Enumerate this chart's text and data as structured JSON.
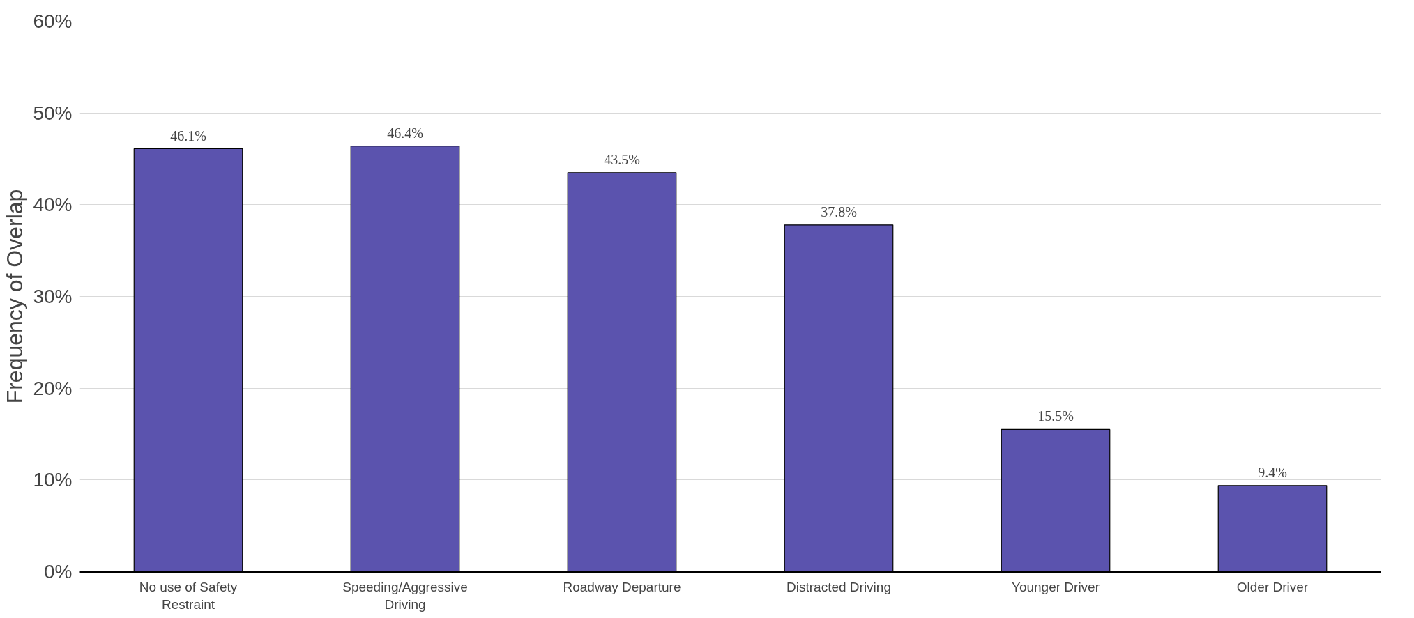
{
  "chart_data": {
    "type": "bar",
    "ylabel": "Frequency of Overlap",
    "categories": [
      "No use of Safety Restraint",
      "Speeding/Aggressive Driving",
      "Roadway Departure",
      "Distracted Driving",
      "Younger Driver",
      "Older Driver"
    ],
    "values": [
      46.1,
      46.4,
      43.5,
      37.8,
      15.5,
      9.4
    ],
    "value_labels": [
      "46.1%",
      "46.4%",
      "43.5%",
      "37.8%",
      "15.5%",
      "9.4%"
    ],
    "color": "#5b53ae",
    "ylim": [
      0,
      60
    ],
    "yticks": [
      {
        "value": 0,
        "label": "0%"
      },
      {
        "value": 10,
        "label": "10%"
      },
      {
        "value": 20,
        "label": "20%"
      },
      {
        "value": 30,
        "label": "30%"
      },
      {
        "value": 40,
        "label": "40%"
      },
      {
        "value": 50,
        "label": "50%"
      },
      {
        "value": 60,
        "label": "60%"
      }
    ],
    "grid": "y"
  }
}
